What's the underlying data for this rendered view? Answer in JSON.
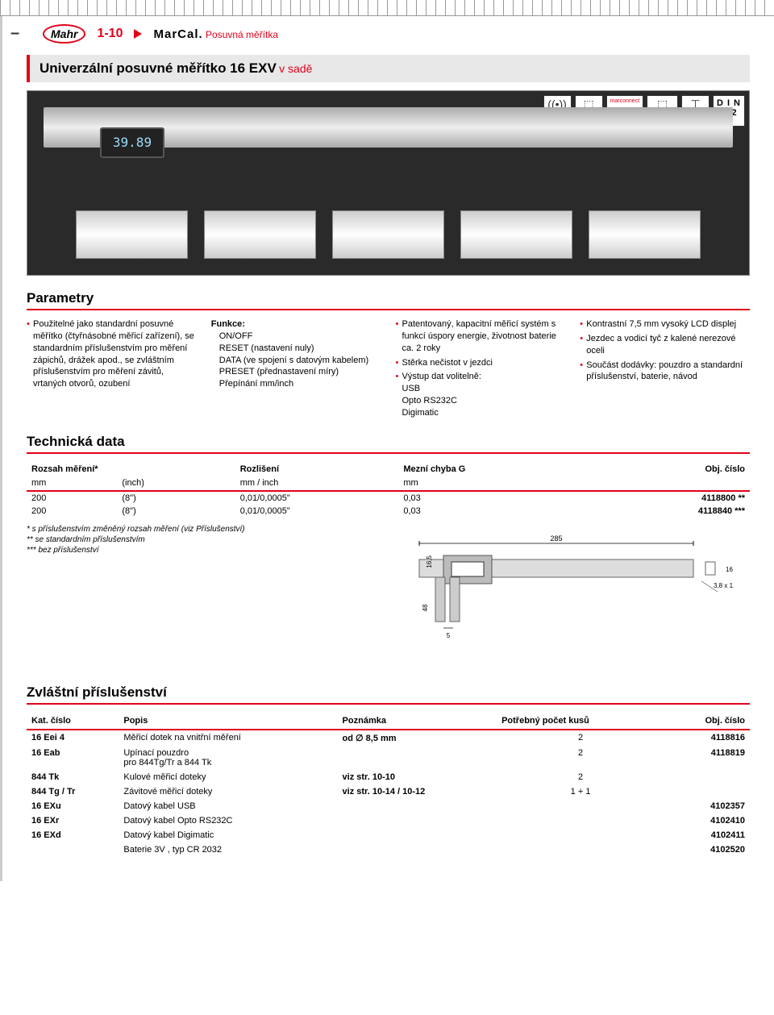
{
  "header": {
    "logo": "Mahr",
    "page_num": "1-10",
    "brand": "MarCal.",
    "category": "Posuvná měřítka"
  },
  "product": {
    "title_main": "Univerzální posuvné měřítko 16 EXV",
    "title_sub": "v sadě",
    "display_value": "39.89",
    "connectors": {
      "wireless": "((•))",
      "marconnect": "marconnect",
      "usb": "USB",
      "rs232c": "RS232C",
      "digimatic": "Digimatic",
      "din": "D I N",
      "din_num": "862"
    }
  },
  "parameters": {
    "heading": "Parametry",
    "col1": [
      "Použitelné jako standardní posuvné měřítko (čtyřná­sobné měřicí zařízení), se standardním příslušen­stvím pro měření zápichů, drážek apod., se zvláštním příslušenstvím pro měření závitů, vrtaných otvorů, ozubení"
    ],
    "col2": {
      "fn_label": "Funkce:",
      "fn_items": [
        "ON/OFF",
        "RESET (nastavení nuly)",
        "DATA (ve spojení s datovým kabelem)",
        "PRESET (přednastavení míry)",
        "Přepínání mm/inch"
      ]
    },
    "col3": [
      "Patentovaný, kapacitní měřicí systém s funkcí úspory energie, životnost baterie ca. 2 roky",
      "Stěrka nečistot v jezdci",
      "Výstup dat volitelně:\nUSB\nOpto RS232C\nDigimatic"
    ],
    "col4": [
      "Kontrastní 7,5 mm vysoký LCD displej",
      "Jezdec a vodicí tyč z kalené nerezové oceli",
      "Součást dodávky: pouzdro a standardní příslušenství, baterie, návod"
    ]
  },
  "tech": {
    "heading": "Technická data",
    "columns": {
      "range": "Rozsah měření*",
      "range_unit_mm": "mm",
      "range_unit_in": "(inch)",
      "resolution": "Rozlišení",
      "resolution_unit": "mm / inch",
      "error": "Mezní chyba G",
      "error_unit": "mm",
      "order": "Obj. číslo"
    },
    "rows": [
      {
        "mm": "200",
        "inch": "(8\")",
        "res": "0,01/0,0005\"",
        "err": "0,03",
        "order": "4118800",
        "suffix": "**"
      },
      {
        "mm": "200",
        "inch": "(8\")",
        "res": "0,01/0,0005\"",
        "err": "0,03",
        "order": "4118840",
        "suffix": "***"
      }
    ],
    "footnotes": {
      "f1": "* s příslušenstvím změněný rozsah měření (viz Příslušenství)",
      "f2": "** se standardním příslušenstvím",
      "f3": "*** bez příslušenství"
    },
    "dims": {
      "length": "285",
      "height": "16,5",
      "jaw_h": "48",
      "jaw_w": "5",
      "thick": "16",
      "cross": "3,8 x 1,3"
    }
  },
  "accessories": {
    "heading": "Zvláštní příslušenství",
    "columns": {
      "cat": "Kat. číslo",
      "desc": "Popis",
      "note": "Poznámka",
      "qty": "Potřebný počet kusů",
      "order": "Obj. číslo"
    },
    "rows": [
      {
        "cat": "16 Eei 4",
        "desc": "Měřicí dotek na vnitřní měření",
        "note": "od ∅ 8,5 mm",
        "qty": "2",
        "order": "4118816"
      },
      {
        "cat": "16 Eab",
        "desc": "Upínací pouzdro\npro 844Tg/Tr a 844 Tk",
        "note": "",
        "qty": "2",
        "order": "4118819"
      },
      {
        "cat": "844 Tk",
        "desc": "Kulové měřicí doteky",
        "note": "viz str. 10-10",
        "qty": "2",
        "order": ""
      },
      {
        "cat": "844 Tg / Tr",
        "desc": "Závitové měřicí doteky",
        "note": "viz str. 10-14 / 10-12",
        "qty": "1 + 1",
        "order": ""
      },
      {
        "cat": "16 EXu",
        "desc": "Datový kabel USB",
        "note": "",
        "qty": "",
        "order": "4102357"
      },
      {
        "cat": "16 EXr",
        "desc": "Datový kabel Opto RS232C",
        "note": "",
        "qty": "",
        "order": "4102410"
      },
      {
        "cat": "16 EXd",
        "desc": "Datový kabel Digimatic",
        "note": "",
        "qty": "",
        "order": "4102411"
      },
      {
        "cat": "",
        "desc": "Baterie 3V , typ CR 2032",
        "note": "",
        "qty": "",
        "order": "4102520"
      }
    ]
  }
}
